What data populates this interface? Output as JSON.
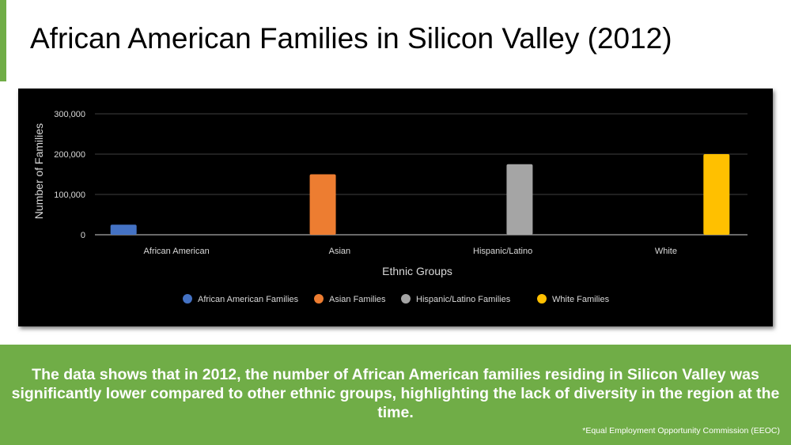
{
  "slide": {
    "title": "African American Families in Silicon Valley (2012)",
    "summary": "The data shows that in 2012, the number of African American families residing in Silicon Valley was significantly lower compared to other ethnic groups, highlighting the lack of diversity in the region at the time.",
    "source": "*Equal Employment Opportunity Commission (EEOC)"
  },
  "chart_data": {
    "type": "bar",
    "title": "",
    "xlabel": "Ethnic Groups",
    "ylabel": "Number of Families",
    "ylim": [
      0,
      300000
    ],
    "yticks": [
      0,
      100000,
      200000,
      300000
    ],
    "ytick_labels": [
      "0",
      "100,000",
      "200,000",
      "300,000"
    ],
    "grid": true,
    "legend_position": "bottom",
    "categories": [
      "African American",
      "Asian",
      "Hispanic/Latino",
      "White"
    ],
    "series": [
      {
        "name": "African American Families",
        "color": "#4472c4",
        "values": [
          25000,
          0,
          0,
          0
        ]
      },
      {
        "name": "Asian Families",
        "color": "#ed7d31",
        "values": [
          0,
          150000,
          0,
          0
        ]
      },
      {
        "name": "Hispanic/Latino Families",
        "color": "#a5a5a5",
        "values": [
          0,
          0,
          175000,
          0
        ]
      },
      {
        "name": "White Families",
        "color": "#ffc000",
        "values": [
          0,
          0,
          0,
          200000
        ]
      }
    ]
  }
}
